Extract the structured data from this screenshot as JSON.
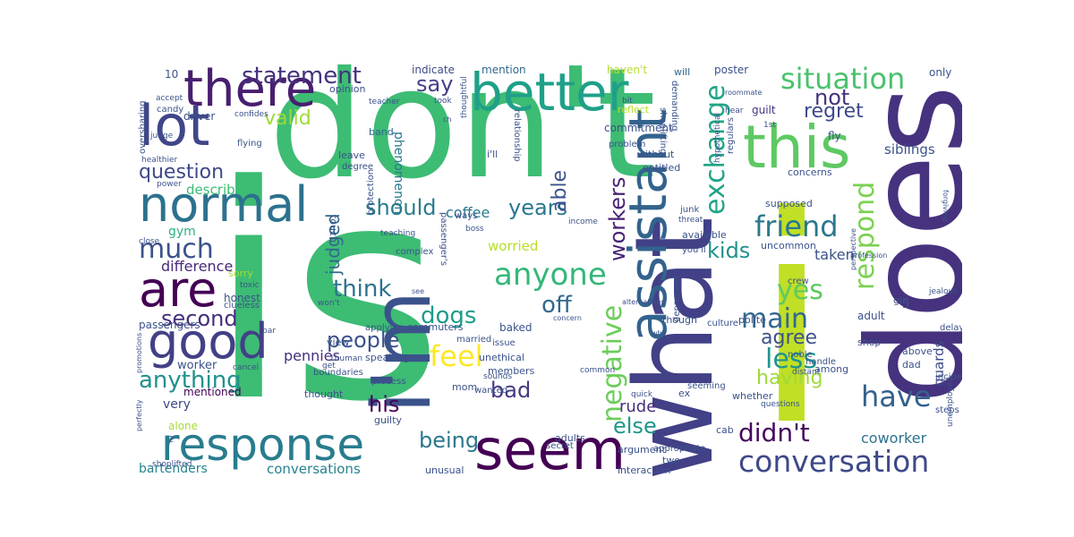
{
  "words": [
    {
      "t": "is",
      "c": "#3dbc74"
    },
    {
      "t": "don't",
      "c": "#3dbc74"
    },
    {
      "t": "i",
      "c": "#c0df25"
    },
    {
      "t": "does",
      "c": "#46327e"
    },
    {
      "t": "what",
      "c": "#424086"
    },
    {
      "t": "i'm",
      "c": "#3b528b"
    },
    {
      "t": "seem",
      "c": "#440154"
    },
    {
      "t": "response",
      "c": "#287c8e"
    },
    {
      "t": "better",
      "c": "#1fa088"
    },
    {
      "t": "this",
      "c": "#5ec962"
    },
    {
      "t": "assistant",
      "c": "#33638d"
    },
    {
      "t": "lot",
      "c": "#3f4788"
    },
    {
      "t": "there",
      "c": "#481f70"
    },
    {
      "t": "normal",
      "c": "#2c728e"
    },
    {
      "t": "good",
      "c": "#424086"
    },
    {
      "t": "are",
      "c": "#440154"
    },
    {
      "t": "conversation",
      "c": "#3e4989"
    },
    {
      "t": "situation",
      "c": "#4ac16d"
    },
    {
      "t": "friend",
      "c": "#2a788e"
    },
    {
      "t": "exchange",
      "c": "#20a486"
    },
    {
      "t": "much",
      "c": "#3b528b"
    },
    {
      "t": "anyone",
      "c": "#35b779"
    },
    {
      "t": "feel",
      "c": "#fde725"
    },
    {
      "t": "negative",
      "c": "#6ccd5a"
    },
    {
      "t": "respond",
      "c": "#7ad151"
    },
    {
      "t": "statement",
      "c": "#46327e"
    },
    {
      "t": "yes",
      "c": "#5ec962"
    },
    {
      "t": "main",
      "c": "#31688e"
    },
    {
      "t": "less",
      "c": "#1f968b"
    },
    {
      "t": "have",
      "c": "#34618d"
    },
    {
      "t": "didn't",
      "c": "#46085c"
    },
    {
      "t": "say",
      "c": "#424086"
    },
    {
      "t": "question",
      "c": "#3e4989"
    },
    {
      "t": "think",
      "c": "#2c728e"
    },
    {
      "t": "people",
      "c": "#3b528b"
    },
    {
      "t": "anything",
      "c": "#21918c"
    },
    {
      "t": "second",
      "c": "#472f7d"
    },
    {
      "t": "dogs",
      "c": "#1e9c89"
    },
    {
      "t": "should",
      "c": "#287c8e"
    },
    {
      "t": "years",
      "c": "#2a788e"
    },
    {
      "t": "off",
      "c": "#31688e"
    },
    {
      "t": "able",
      "c": "#3b528b"
    },
    {
      "t": "kids",
      "c": "#21918c"
    },
    {
      "t": "workers",
      "c": "#482475"
    },
    {
      "t": "regret",
      "c": "#3e4989"
    },
    {
      "t": "not",
      "c": "#46327e"
    },
    {
      "t": "valid",
      "c": "#9fda3a"
    },
    {
      "t": "having",
      "c": "#9fda3a"
    },
    {
      "t": "agree",
      "c": "#3b528b"
    },
    {
      "t": "else",
      "c": "#1f968b"
    },
    {
      "t": "his",
      "c": "#440154"
    },
    {
      "t": "bad",
      "c": "#453781"
    },
    {
      "t": "being",
      "c": "#2a788e"
    },
    {
      "t": "judged",
      "c": "#31688e"
    },
    {
      "t": "rude",
      "c": "#472f7d"
    },
    {
      "t": "coworker",
      "c": "#2c728e"
    },
    {
      "t": "taken",
      "c": "#3b528b"
    },
    {
      "t": "worried",
      "c": "#b5de2b"
    },
    {
      "t": "coffee",
      "c": "#2a788e"
    },
    {
      "t": "difference",
      "c": "#482878"
    },
    {
      "t": "describe",
      "c": "#3dbc74"
    },
    {
      "t": "gym",
      "c": "#2db27d"
    },
    {
      "t": "pennies",
      "c": "#472f7d"
    },
    {
      "t": "very",
      "c": "#3e4989"
    },
    {
      "t": "bartenders",
      "c": "#26828e"
    },
    {
      "t": "conversations",
      "c": "#26828e"
    },
    {
      "t": "guards",
      "c": "#3e4989"
    },
    {
      "t": "siblings",
      "c": "#3b528b"
    },
    {
      "t": "phenomenon",
      "c": "#2a788e"
    },
    {
      "t": "worker",
      "c": "#3b528b"
    },
    {
      "t": "mentioned",
      "c": "#440154"
    },
    {
      "t": "alone",
      "c": "#a5db36"
    },
    {
      "t": "honest",
      "c": "#3b528b"
    },
    {
      "t": "passengers",
      "c": "#3b528b"
    },
    {
      "t": "sorry",
      "c": "#a5db36"
    },
    {
      "t": "indicate",
      "c": "#3e4989"
    },
    {
      "t": "mention",
      "c": "#31688e"
    },
    {
      "t": "haven't",
      "c": "#b5de2b"
    },
    {
      "t": "will",
      "c": "#31688e"
    },
    {
      "t": "poster",
      "c": "#3b528b"
    },
    {
      "t": "only",
      "c": "#3b528b"
    },
    {
      "t": "opinion",
      "c": "#3b528b"
    },
    {
      "t": "driver",
      "c": "#3b528b"
    },
    {
      "t": "reflect",
      "c": "#b5de2b"
    },
    {
      "t": "guilt",
      "c": "#46327e"
    },
    {
      "t": "commitment",
      "c": "#3b528b"
    },
    {
      "t": "band",
      "c": "#31688e"
    },
    {
      "t": "leave",
      "c": "#3b528b"
    },
    {
      "t": "degree",
      "c": "#3b528b"
    },
    {
      "t": "without",
      "c": "#3b528b"
    },
    {
      "t": "entitled",
      "c": "#3b528b"
    },
    {
      "t": "concerns",
      "c": "#3b528b"
    },
    {
      "t": "fly",
      "c": "#3b528b"
    },
    {
      "t": "i'll",
      "c": "#3b528b"
    },
    {
      "t": "supposed",
      "c": "#3b528b"
    },
    {
      "t": "available",
      "c": "#3b528b"
    },
    {
      "t": "uncommon",
      "c": "#3b528b"
    },
    {
      "t": "crew",
      "c": "#3b528b"
    },
    {
      "t": "adult",
      "c": "#3b528b"
    },
    {
      "t": "depressed",
      "c": "#3b528b"
    },
    {
      "t": "though",
      "c": "#3b528b"
    },
    {
      "t": "polite",
      "c": "#3b528b"
    },
    {
      "t": "culture",
      "c": "#3b528b"
    },
    {
      "t": "shop",
      "c": "#3b528b"
    },
    {
      "t": "above",
      "c": "#3b528b"
    },
    {
      "t": "dad",
      "c": "#3b528b"
    },
    {
      "t": "delays",
      "c": "#3b528b"
    },
    {
      "t": "among",
      "c": "#3b528b"
    },
    {
      "t": "whether",
      "c": "#3b528b"
    },
    {
      "t": "ex",
      "c": "#3b528b"
    },
    {
      "t": "seeming",
      "c": "#3b528b"
    },
    {
      "t": "incident",
      "c": "#3b528b"
    },
    {
      "t": "steps",
      "c": "#3b528b"
    },
    {
      "t": "cab",
      "c": "#3b528b"
    },
    {
      "t": "argument",
      "c": "#3b528b"
    },
    {
      "t": "appropriate",
      "c": "#3b528b"
    },
    {
      "t": "two",
      "c": "#3b528b"
    },
    {
      "t": "interaction",
      "c": "#3b528b"
    },
    {
      "t": "adults",
      "c": "#3b528b"
    },
    {
      "t": "unusual",
      "c": "#3b528b"
    },
    {
      "t": "secret",
      "c": "#3b528b"
    },
    {
      "t": "members",
      "c": "#3b528b"
    },
    {
      "t": "unethical",
      "c": "#3b528b"
    },
    {
      "t": "wanted",
      "c": "#3b528b"
    },
    {
      "t": "mom",
      "c": "#3b528b"
    },
    {
      "t": "issue",
      "c": "#3b528b"
    },
    {
      "t": "sounds",
      "c": "#3b528b"
    },
    {
      "t": "guilty",
      "c": "#3b528b"
    },
    {
      "t": "baked",
      "c": "#3b528b"
    },
    {
      "t": "commuters",
      "c": "#3b528b"
    },
    {
      "t": "married",
      "c": "#3b528b"
    },
    {
      "t": "thought",
      "c": "#3b528b"
    },
    {
      "t": "speaking",
      "c": "#3b528b"
    },
    {
      "t": "process",
      "c": "#3b528b"
    },
    {
      "t": "boundaries",
      "c": "#3b528b"
    },
    {
      "t": "view",
      "c": "#3b528b"
    },
    {
      "t": "applying",
      "c": "#3b528b"
    },
    {
      "t": "get",
      "c": "#3b528b"
    },
    {
      "t": "1human",
      "c": "#3b528b"
    },
    {
      "t": "cancel",
      "c": "#3b528b"
    },
    {
      "t": "toxic",
      "c": "#3b528b"
    },
    {
      "t": "clueless",
      "c": "#3b528b"
    },
    {
      "t": "won't",
      "c": "#3b528b"
    },
    {
      "t": "bar",
      "c": "#3b528b"
    },
    {
      "t": "close",
      "c": "#3b528b"
    },
    {
      "t": "power",
      "c": "#3b528b"
    },
    {
      "t": "healthier",
      "c": "#3b528b"
    },
    {
      "t": "flying",
      "c": "#3b528b"
    },
    {
      "t": "judge",
      "c": "#3b528b"
    },
    {
      "t": "candy",
      "c": "#3b528b"
    },
    {
      "t": "accept",
      "c": "#3b528b"
    },
    {
      "t": "oversharing",
      "c": "#3b528b"
    },
    {
      "t": "teacher",
      "c": "#3b528b"
    },
    {
      "t": "confides",
      "c": "#3b528b"
    },
    {
      "t": "took",
      "c": "#3b528b"
    },
    {
      "t": "bit",
      "c": "#3b528b"
    },
    {
      "t": "roommate",
      "c": "#3b528b"
    },
    {
      "t": "hear",
      "c": "#3b528b"
    },
    {
      "t": "1st",
      "c": "#3b528b"
    },
    {
      "t": "distant",
      "c": "#3b528b"
    },
    {
      "t": "forgiving",
      "c": "#3b528b"
    },
    {
      "t": "profession",
      "c": "#3b528b"
    },
    {
      "t": "threat",
      "c": "#3b528b"
    },
    {
      "t": "hypothetical",
      "c": "#3b528b"
    },
    {
      "t": "regulars",
      "c": "#3b528b"
    },
    {
      "t": "shoplifting",
      "c": "#3b528b"
    },
    {
      "t": "demanding",
      "c": "#3b528b"
    },
    {
      "t": "junk",
      "c": "#3b528b"
    },
    {
      "t": "problem",
      "c": "#3b528b"
    },
    {
      "t": "relationship",
      "c": "#3b528b"
    },
    {
      "t": "thoughtful",
      "c": "#3b528b"
    },
    {
      "t": "ch",
      "c": "#3b528b"
    },
    {
      "t": "boss",
      "c": "#3b528b"
    },
    {
      "t": "ways",
      "c": "#3b528b"
    },
    {
      "t": "income",
      "c": "#3b528b"
    },
    {
      "t": "passenger's",
      "c": "#3b528b"
    },
    {
      "t": "teaching",
      "c": "#3b528b"
    },
    {
      "t": "touch",
      "c": "#3b528b"
    },
    {
      "t": "protection",
      "c": "#3b528b"
    },
    {
      "t": "complex",
      "c": "#3b528b"
    },
    {
      "t": "see",
      "c": "#3b528b"
    },
    {
      "t": "concern",
      "c": "#3b528b"
    },
    {
      "t": "alternatives",
      "c": "#3b528b"
    },
    {
      "t": "why",
      "c": "#3b528b"
    },
    {
      "t": "quick",
      "c": "#3b528b"
    },
    {
      "t": "common",
      "c": "#3b528b"
    },
    {
      "t": "questions",
      "c": "#3b528b"
    },
    {
      "t": "noble",
      "c": "#3b528b"
    },
    {
      "t": "handle",
      "c": "#3b528b"
    },
    {
      "t": "unemployed",
      "c": "#3b528b"
    },
    {
      "t": "girl",
      "c": "#3b528b"
    },
    {
      "t": "jealous",
      "c": "#3b528b"
    },
    {
      "t": "perspective",
      "c": "#3b528b"
    },
    {
      "t": "you'll",
      "c": "#3b528b"
    },
    {
      "t": "promotions",
      "c": "#3b528b"
    },
    {
      "t": "perfectly",
      "c": "#3b528b"
    },
    {
      "t": "shoplifted",
      "c": "#3b528b"
    },
    {
      "t": "10",
      "c": "#3b528b"
    },
    {
      "t": "5",
      "c": "#3b528b"
    },
    {
      "t": "2",
      "c": "#3b528b"
    }
  ]
}
